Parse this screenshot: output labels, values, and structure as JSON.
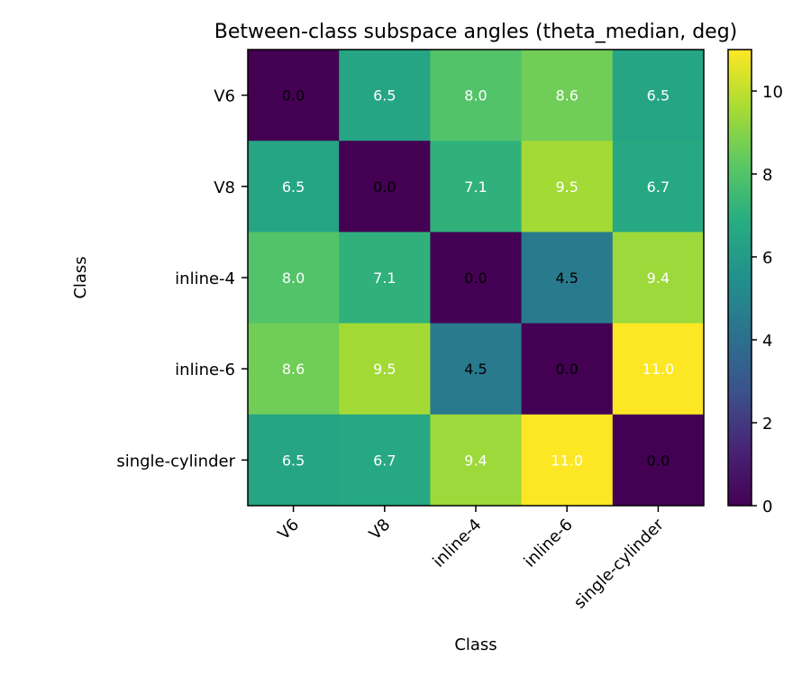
{
  "chart_data": {
    "type": "heatmap",
    "title": "Between-class subspace angles (theta_median, deg)",
    "xlabel": "Class",
    "ylabel": "Class",
    "categories": [
      "V6",
      "V8",
      "inline-4",
      "inline-6",
      "single-cylinder"
    ],
    "values": [
      [
        0.0,
        6.5,
        8.0,
        8.6,
        6.5
      ],
      [
        6.5,
        0.0,
        7.1,
        9.5,
        6.7
      ],
      [
        8.0,
        7.1,
        0.0,
        4.5,
        9.4
      ],
      [
        8.6,
        9.5,
        4.5,
        0.0,
        11.0
      ],
      [
        6.5,
        6.7,
        9.4,
        11.0,
        0.0
      ]
    ],
    "value_labels": [
      [
        "0.0",
        "6.5",
        "8.0",
        "8.6",
        "6.5"
      ],
      [
        "6.5",
        "0.0",
        "7.1",
        "9.5",
        "6.7"
      ],
      [
        "8.0",
        "7.1",
        "0.0",
        "4.5",
        "9.4"
      ],
      [
        "8.6",
        "9.5",
        "4.5",
        "0.0",
        "11.0"
      ],
      [
        "6.5",
        "6.7",
        "9.4",
        "11.0",
        "0.0"
      ]
    ],
    "colorbar": {
      "range": [
        0,
        11.0
      ],
      "ticks": [
        0,
        2,
        4,
        6,
        8,
        10
      ],
      "tick_labels": [
        "0",
        "2",
        "4",
        "6",
        "8",
        "10"
      ],
      "colormap": "viridis"
    },
    "grid": false,
    "legend": "none"
  }
}
